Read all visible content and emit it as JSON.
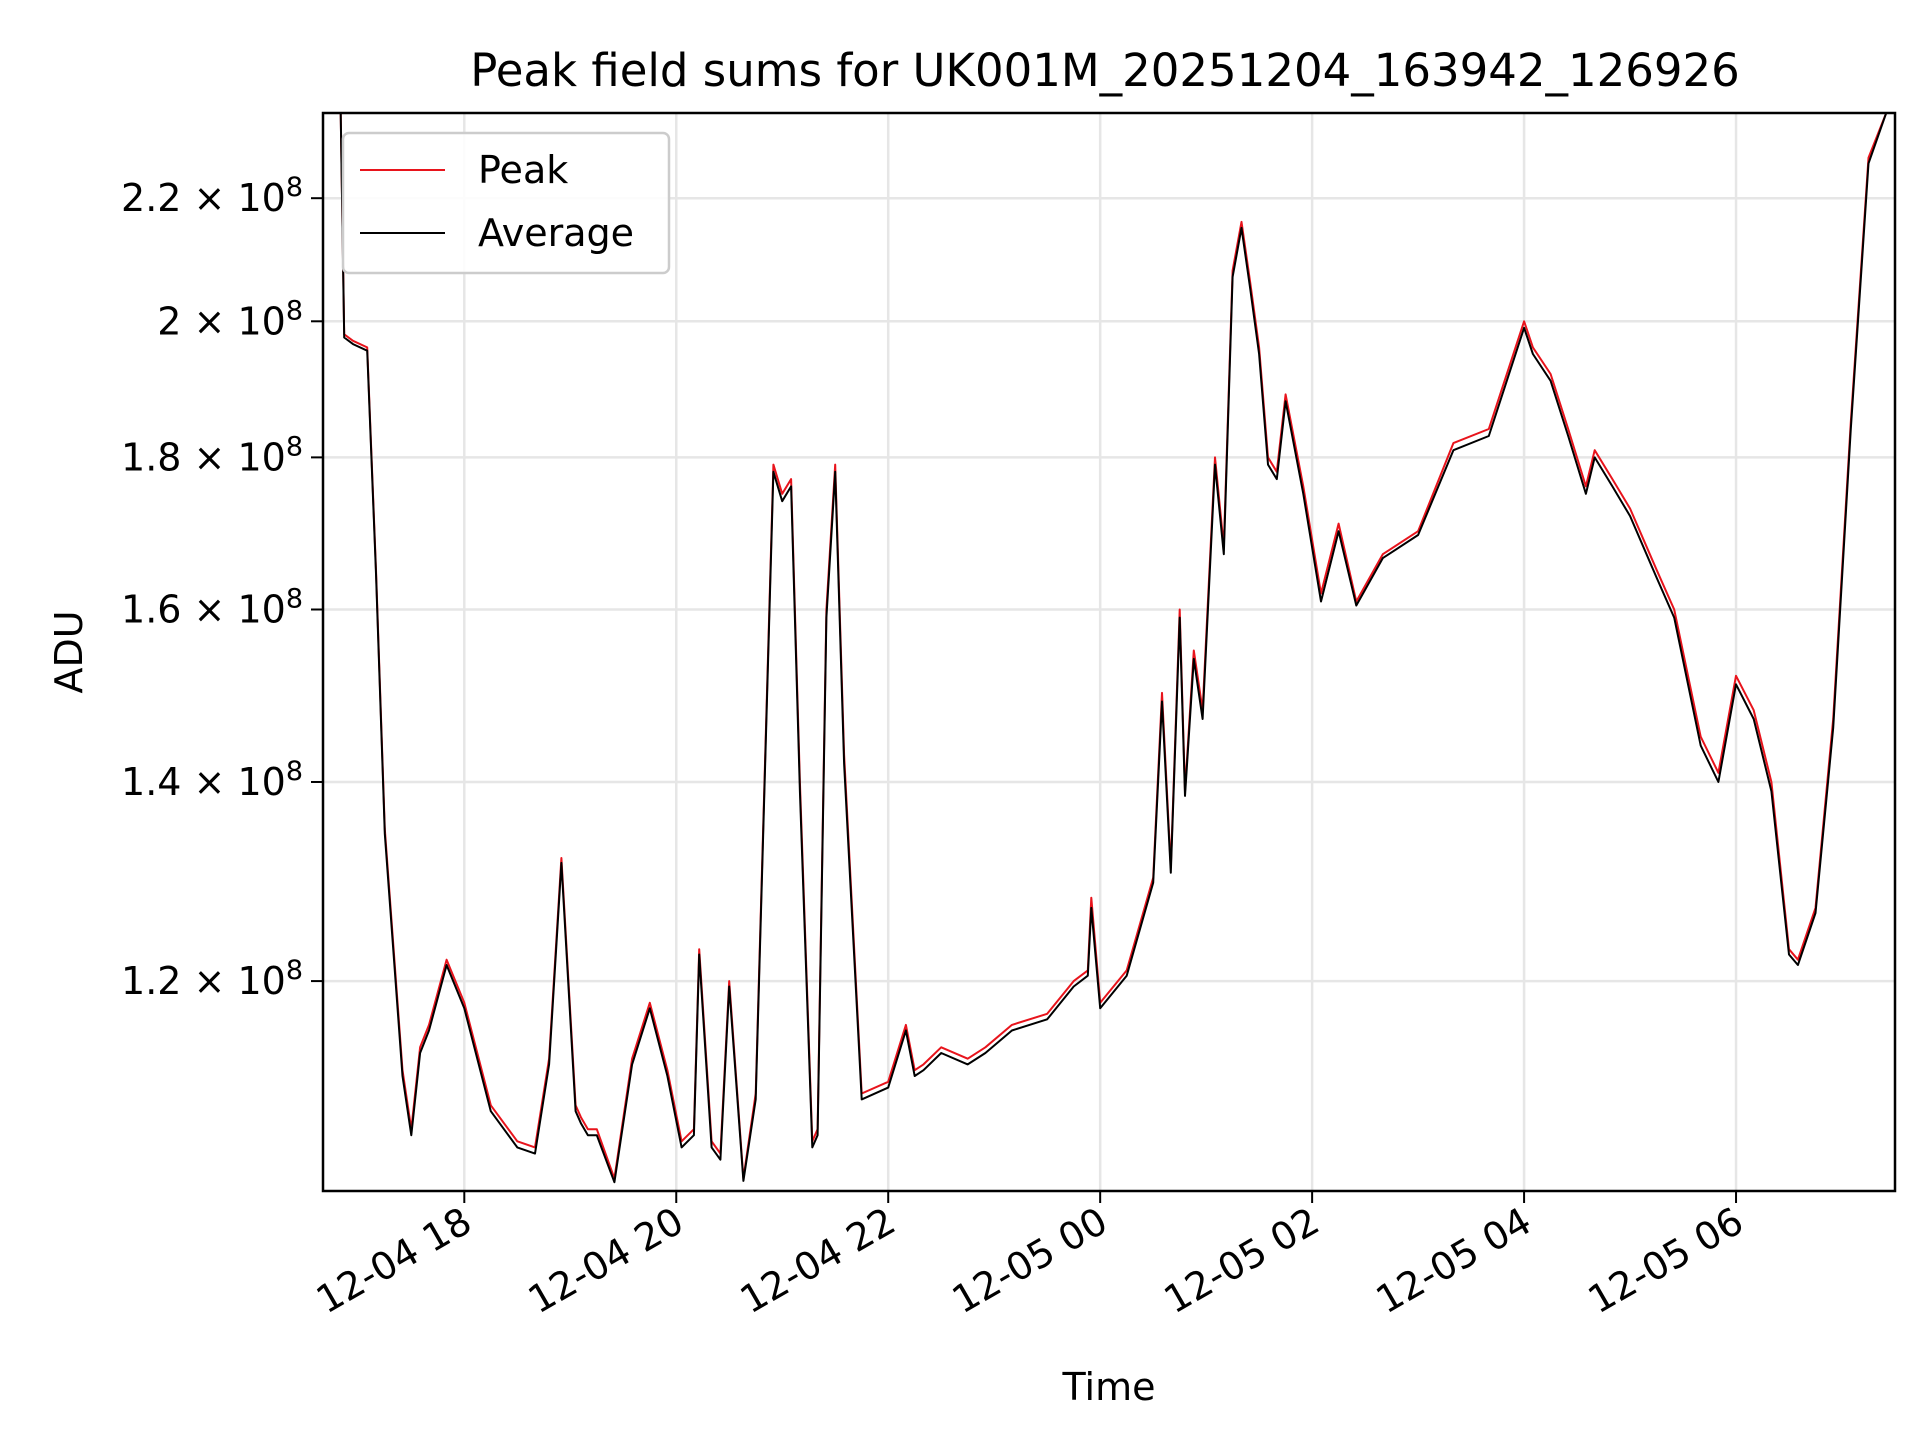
{
  "chart_data": {
    "type": "line",
    "title": "Peak field sums for UK001M_20251204_163942_126926",
    "xlabel": "Time",
    "ylabel": "ADU",
    "yscale": "log",
    "grid": true,
    "legend_position": "upper-left",
    "xlim": [
      "12-04 16:40",
      "12-05 07:30"
    ],
    "ylim": [
      102000000,
      235000000
    ],
    "x_ticks": [
      {
        "time": "12-04 18:00",
        "label": "12-04 18"
      },
      {
        "time": "12-04 20:00",
        "label": "12-04 20"
      },
      {
        "time": "12-04 22:00",
        "label": "12-04 22"
      },
      {
        "time": "12-05 00:00",
        "label": "12-05 00"
      },
      {
        "time": "12-05 02:00",
        "label": "12-05 02"
      },
      {
        "time": "12-05 04:00",
        "label": "12-05 04"
      },
      {
        "time": "12-05 06:00",
        "label": "12-05 06"
      }
    ],
    "y_ticks": [
      {
        "value": 120000000,
        "mantissa": "1.2",
        "exponent": "8"
      },
      {
        "value": 140000000,
        "mantissa": "1.4",
        "exponent": "8"
      },
      {
        "value": 160000000,
        "mantissa": "1.6",
        "exponent": "8"
      },
      {
        "value": 180000000,
        "mantissa": "1.8",
        "exponent": "8"
      },
      {
        "value": 200000000,
        "mantissa": "2",
        "exponent": "8"
      },
      {
        "value": 220000000,
        "mantissa": "2.2",
        "exponent": "8"
      }
    ],
    "x": [
      "12-04 16:40",
      "12-04 16:50",
      "12-04 16:52",
      "12-04 16:57",
      "12-04 17:05",
      "12-04 17:10",
      "12-04 17:15",
      "12-04 17:25",
      "12-04 17:30",
      "12-04 17:35",
      "12-04 17:40",
      "12-04 17:50",
      "12-04 18:00",
      "12-04 18:15",
      "12-04 18:30",
      "12-04 18:40",
      "12-04 18:48",
      "12-04 18:55",
      "12-04 19:03",
      "12-04 19:06",
      "12-04 19:10",
      "12-04 19:15",
      "12-04 19:25",
      "12-04 19:35",
      "12-04 19:45",
      "12-04 19:55",
      "12-04 20:03",
      "12-04 20:10",
      "12-04 20:13",
      "12-04 20:20",
      "12-04 20:25",
      "12-04 20:30",
      "12-04 20:38",
      "12-04 20:45",
      "12-04 20:55",
      "12-04 21:00",
      "12-04 21:05",
      "12-04 21:10",
      "12-04 21:17",
      "12-04 21:20",
      "12-04 21:25",
      "12-04 21:30",
      "12-04 21:35",
      "12-04 21:45",
      "12-04 22:00",
      "12-04 22:10",
      "12-04 22:15",
      "12-04 22:20",
      "12-04 22:30",
      "12-04 22:45",
      "12-04 22:55",
      "12-04 23:10",
      "12-04 23:30",
      "12-04 23:45",
      "12-04 23:53",
      "12-04 23:55",
      "12-05 00:00",
      "12-05 00:15",
      "12-05 00:30",
      "12-05 00:35",
      "12-05 00:40",
      "12-05 00:45",
      "12-05 00:48",
      "12-05 00:53",
      "12-05 00:58",
      "12-05 01:05",
      "12-05 01:10",
      "12-05 01:15",
      "12-05 01:20",
      "12-05 01:25",
      "12-05 01:30",
      "12-05 01:35",
      "12-05 01:40",
      "12-05 01:45",
      "12-05 01:55",
      "12-05 02:05",
      "12-05 02:15",
      "12-05 02:25",
      "12-05 02:40",
      "12-05 03:00",
      "12-05 03:20",
      "12-05 03:40",
      "12-05 04:00",
      "12-05 04:05",
      "12-05 04:15",
      "12-05 04:25",
      "12-05 04:35",
      "12-05 04:40",
      "12-05 04:50",
      "12-05 05:00",
      "12-05 05:15",
      "12-05 05:25",
      "12-05 05:40",
      "12-05 05:50",
      "12-05 06:00",
      "12-05 06:10",
      "12-05 06:20",
      "12-05 06:30",
      "12-05 06:35",
      "12-05 06:45",
      "12-05 06:55",
      "12-05 07:05",
      "12-05 07:15",
      "12-05 07:25",
      "12-05 07:30"
    ],
    "series": [
      {
        "name": "Peak",
        "color": "#e8141c",
        "values": [
          235000000,
          235000000,
          198000000,
          197000000,
          196000000,
          165000000,
          135000000,
          112000000,
          107000000,
          114000000,
          116000000,
          122000000,
          118000000,
          109000000,
          106000000,
          105500000,
          113000000,
          132000000,
          109000000,
          108000000,
          107000000,
          107000000,
          103000000,
          113000000,
          118000000,
          112000000,
          106000000,
          107000000,
          123000000,
          106000000,
          105000000,
          120000000,
          103000000,
          110000000,
          179000000,
          175000000,
          177000000,
          140000000,
          106000000,
          107000000,
          160000000,
          179000000,
          143000000,
          110000000,
          111000000,
          116000000,
          112000000,
          112500000,
          114000000,
          113000000,
          114000000,
          116000000,
          117000000,
          120000000,
          121000000,
          128000000,
          118000000,
          121000000,
          130000000,
          150000000,
          131000000,
          160000000,
          139000000,
          155000000,
          148000000,
          180000000,
          168000000,
          208000000,
          216000000,
          206000000,
          196000000,
          180000000,
          178000000,
          189000000,
          176000000,
          162000000,
          171000000,
          161000000,
          167000000,
          170000000,
          182000000,
          184000000,
          200000000,
          196000000,
          192000000,
          184000000,
          176000000,
          181000000,
          177000000,
          173000000,
          165000000,
          160000000,
          145000000,
          141000000,
          152000000,
          148000000,
          140000000,
          123000000,
          122000000,
          127000000,
          147000000,
          185000000,
          227000000,
          235000000,
          235000000
        ]
      },
      {
        "name": "Average",
        "color": "#000000",
        "values": [
          235000000,
          235000000,
          197500000,
          196500000,
          195500000,
          164500000,
          134500000,
          111500000,
          106500000,
          113500000,
          115500000,
          121500000,
          117500000,
          108500000,
          105500000,
          105000000,
          112500000,
          131500000,
          108500000,
          107500000,
          106500000,
          106500000,
          102700000,
          112500000,
          117500000,
          111500000,
          105500000,
          106500000,
          122500000,
          105500000,
          104500000,
          119500000,
          102800000,
          109500000,
          178000000,
          174000000,
          176000000,
          139000000,
          105500000,
          106500000,
          159000000,
          178000000,
          142000000,
          109500000,
          110500000,
          115500000,
          111500000,
          112000000,
          113500000,
          112500000,
          113500000,
          115500000,
          116500000,
          119500000,
          120500000,
          127000000,
          117500000,
          120500000,
          129500000,
          149000000,
          130500000,
          159000000,
          138500000,
          154000000,
          147000000,
          179000000,
          167000000,
          207000000,
          215000000,
          205000000,
          195000000,
          179000000,
          177000000,
          188000000,
          175000000,
          161000000,
          170000000,
          160500000,
          166500000,
          169500000,
          181000000,
          183000000,
          199000000,
          195000000,
          191000000,
          183000000,
          175000000,
          180000000,
          176000000,
          172000000,
          164000000,
          159000000,
          144000000,
          140000000,
          151000000,
          147000000,
          139000000,
          122500000,
          121500000,
          126500000,
          146000000,
          184000000,
          226000000,
          235000000,
          235000000
        ]
      }
    ]
  }
}
